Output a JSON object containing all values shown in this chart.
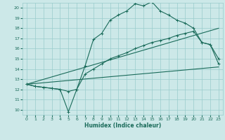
{
  "xlabel": "Humidex (Indice chaleur)",
  "xlim": [
    -0.5,
    23.5
  ],
  "ylim": [
    9.5,
    20.5
  ],
  "xticks": [
    0,
    1,
    2,
    3,
    4,
    5,
    6,
    7,
    8,
    9,
    10,
    11,
    12,
    13,
    14,
    15,
    16,
    17,
    18,
    19,
    20,
    21,
    22,
    23
  ],
  "yticks": [
    10,
    11,
    12,
    13,
    14,
    15,
    16,
    17,
    18,
    19,
    20
  ],
  "bg_color": "#cce8e8",
  "grid_color": "#99cccc",
  "line_color": "#1a6b5a",
  "line1_x": [
    0,
    1,
    2,
    3,
    4,
    5,
    6,
    7,
    8,
    9,
    10,
    11,
    12,
    13,
    14,
    15,
    16,
    17,
    18,
    19,
    20,
    21,
    22,
    23
  ],
  "line1_y": [
    12.5,
    12.3,
    12.2,
    12.1,
    12.0,
    9.8,
    12.0,
    14.3,
    16.9,
    17.5,
    18.8,
    19.3,
    19.7,
    20.4,
    20.2,
    20.6,
    19.7,
    19.3,
    18.8,
    18.5,
    18.0,
    16.6,
    16.4,
    15.0
  ],
  "line2_x": [
    0,
    1,
    2,
    3,
    4,
    5,
    6,
    7,
    8,
    9,
    10,
    11,
    12,
    13,
    14,
    15,
    16,
    17,
    18,
    19,
    20,
    21,
    22,
    23
  ],
  "line2_y": [
    12.5,
    12.3,
    12.2,
    12.1,
    12.0,
    11.8,
    12.0,
    13.5,
    14.0,
    14.5,
    15.0,
    15.3,
    15.6,
    16.0,
    16.3,
    16.6,
    16.8,
    17.0,
    17.3,
    17.5,
    17.7,
    16.6,
    16.4,
    14.5
  ],
  "line3_x": [
    0,
    23
  ],
  "line3_y": [
    12.5,
    18.0
  ],
  "line4_x": [
    0,
    23
  ],
  "line4_y": [
    12.5,
    14.2
  ]
}
